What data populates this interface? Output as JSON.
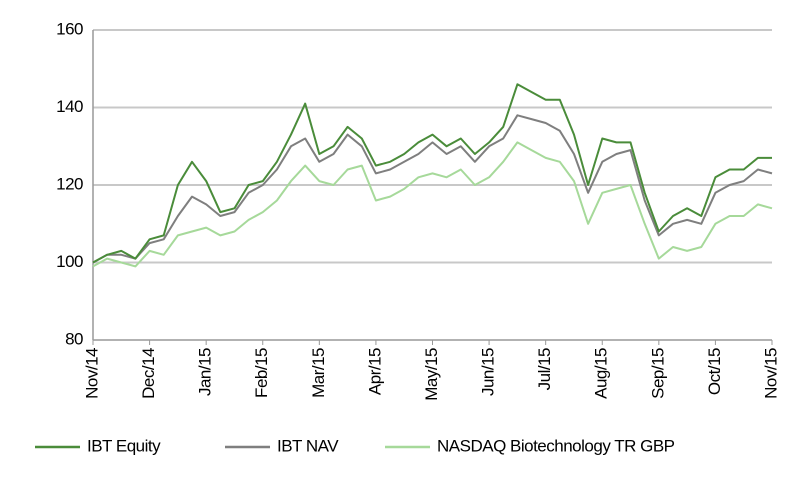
{
  "chart_data": {
    "type": "line",
    "categories": [
      "Nov/14",
      null,
      null,
      null,
      "Dec/14",
      null,
      null,
      null,
      "Jan/15",
      null,
      null,
      null,
      "Feb/15",
      null,
      null,
      null,
      "Mar/15",
      null,
      null,
      null,
      "Apr/15",
      null,
      null,
      null,
      "May/15",
      null,
      null,
      null,
      "Jun/15",
      null,
      null,
      null,
      "Jul/15",
      null,
      null,
      null,
      "Aug/15",
      null,
      null,
      null,
      "Sep/15",
      null,
      null,
      null,
      "Oct/15",
      null,
      null,
      null,
      "Nov/15"
    ],
    "series": [
      {
        "name": "IBT Equity",
        "color": "#4a8c3a",
        "values": [
          100,
          102,
          103,
          101,
          106,
          107,
          120,
          126,
          121,
          113,
          114,
          120,
          121,
          126,
          133,
          141,
          128,
          130,
          135,
          132,
          125,
          126,
          128,
          131,
          133,
          130,
          132,
          128,
          131,
          135,
          146,
          144,
          142,
          142,
          133,
          120,
          132,
          131,
          131,
          118,
          108,
          112,
          114,
          112,
          122,
          124,
          124,
          127,
          127
        ]
      },
      {
        "name": "IBT NAV",
        "color": "#7f7f7f",
        "values": [
          100,
          102,
          102,
          101,
          105,
          106,
          112,
          117,
          115,
          112,
          113,
          118,
          120,
          124,
          130,
          132,
          126,
          128,
          133,
          130,
          123,
          124,
          126,
          128,
          131,
          128,
          130,
          126,
          130,
          132,
          138,
          137,
          136,
          134,
          128,
          118,
          126,
          128,
          129,
          116,
          107,
          110,
          111,
          110,
          118,
          120,
          121,
          124,
          123
        ]
      },
      {
        "name": "NASDAQ Biotechnology TR GBP",
        "color": "#a6d99a",
        "values": [
          99,
          101,
          100,
          99,
          103,
          102,
          107,
          108,
          109,
          107,
          108,
          111,
          113,
          116,
          121,
          125,
          121,
          120,
          124,
          125,
          116,
          117,
          119,
          122,
          123,
          122,
          124,
          120,
          122,
          126,
          131,
          129,
          127,
          126,
          121,
          110,
          118,
          119,
          120,
          110,
          101,
          104,
          103,
          104,
          110,
          112,
          112,
          115,
          114
        ]
      }
    ],
    "ylim": [
      80,
      160
    ],
    "yticks": [
      80,
      100,
      120,
      140,
      160
    ],
    "grid": true,
    "legend": "bottom"
  }
}
